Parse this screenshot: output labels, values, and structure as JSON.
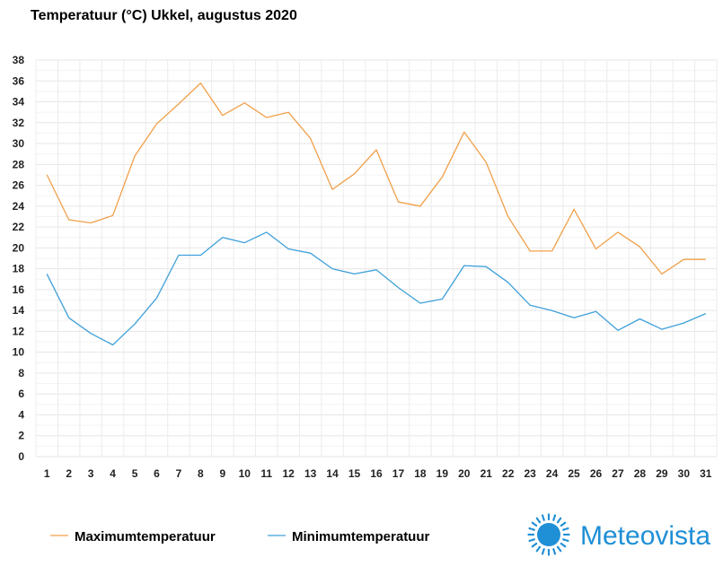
{
  "chart_data": {
    "type": "line",
    "title": "Temperatuur (°C)  Ukkel, augustus 2020",
    "xlabel": "",
    "ylabel": "",
    "x": [
      1,
      2,
      3,
      4,
      5,
      6,
      7,
      8,
      9,
      10,
      11,
      12,
      13,
      14,
      15,
      16,
      17,
      18,
      19,
      20,
      21,
      22,
      23,
      24,
      25,
      26,
      27,
      28,
      29,
      30,
      31
    ],
    "ylim": [
      0,
      38
    ],
    "yticks": [
      0,
      2,
      4,
      6,
      8,
      10,
      12,
      14,
      16,
      18,
      20,
      22,
      24,
      26,
      28,
      30,
      32,
      34,
      36,
      38
    ],
    "grid": true,
    "legend_position": "bottom-left",
    "series": [
      {
        "name": "Maximumtemperatuur",
        "color": "#f0a04b",
        "values": [
          27.0,
          22.7,
          22.4,
          23.1,
          28.8,
          31.9,
          33.8,
          35.8,
          32.7,
          33.9,
          32.5,
          33.0,
          30.5,
          25.6,
          27.1,
          29.4,
          24.4,
          24.0,
          26.8,
          31.1,
          28.2,
          23.0,
          19.7,
          19.7,
          23.7,
          19.9,
          21.5,
          20.1,
          17.5,
          18.9,
          18.9
        ]
      },
      {
        "name": "Minimumtemperatuur",
        "color": "#3ea0da",
        "values": [
          17.5,
          13.3,
          11.8,
          10.7,
          12.7,
          15.2,
          19.3,
          19.3,
          21.0,
          20.5,
          21.5,
          19.9,
          19.5,
          18.0,
          17.5,
          17.9,
          16.2,
          14.7,
          15.1,
          18.3,
          18.2,
          16.7,
          14.5,
          14.0,
          13.3,
          13.9,
          12.1,
          13.2,
          12.2,
          12.8,
          13.7
        ]
      }
    ]
  },
  "brand": {
    "name": "Meteovista",
    "color": "#1f8fd6",
    "icon": "sun-icon"
  }
}
